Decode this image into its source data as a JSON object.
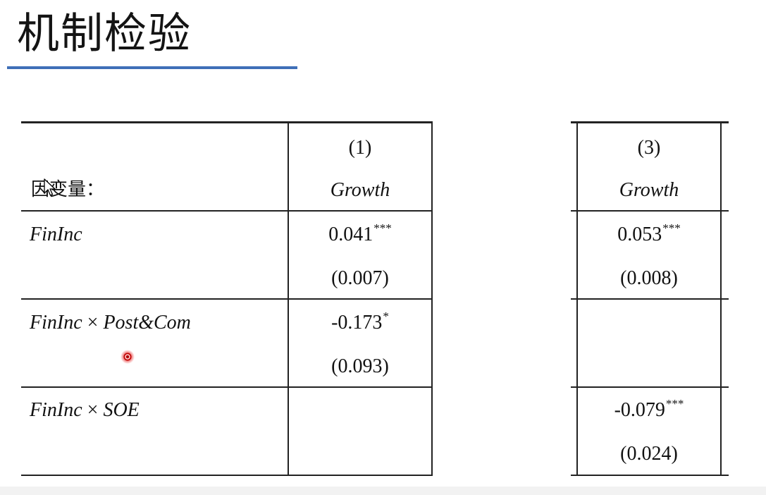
{
  "title": "机制检验",
  "accent_color": "#3f6fb8",
  "table_left": {
    "dep_var_label": "因变量：",
    "column": {
      "number": "(1)",
      "variable": "Growth"
    },
    "rows": [
      {
        "label_main": "FinInc",
        "label_op": "",
        "label_term": "",
        "coef": "0.041",
        "stars": "***",
        "se": "(0.007)"
      },
      {
        "label_main": "FinInc",
        "label_op": " × ",
        "label_term": "Post&Com",
        "coef": "-0.173",
        "stars": "*",
        "se": "(0.093)"
      },
      {
        "label_main": "FinInc",
        "label_op": " × ",
        "label_term": "SOE",
        "coef": "",
        "stars": "",
        "se": ""
      }
    ]
  },
  "table_right": {
    "column": {
      "number": "(3)",
      "variable": "Growth"
    },
    "rows": [
      {
        "coef": "0.053",
        "stars": "***",
        "se": "(0.008)"
      },
      {
        "coef": "",
        "stars": "",
        "se": ""
      },
      {
        "coef": "-0.079",
        "stars": "***",
        "se": "(0.024)"
      }
    ]
  },
  "icons": {
    "cursor": "arrow-cursor-icon",
    "click_marker": "click-indicator-icon"
  }
}
